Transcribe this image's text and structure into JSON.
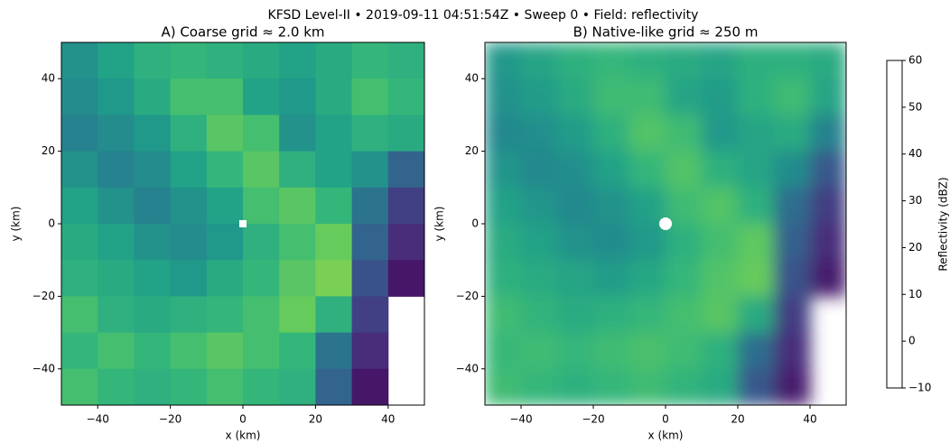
{
  "chart_data": {
    "title": "KFSD Level-II  •  2019-09-11 04:51:54Z  •  Sweep 0  •  Field: reflectivity",
    "panels": [
      {
        "type": "heatmap",
        "title": "A) Coarse grid ≈ 2.0 km",
        "xlabel": "x (km)",
        "ylabel": "y (km)",
        "xlim": [
          -50,
          50
        ],
        "ylim": [
          -50,
          50
        ],
        "xticks": [
          {
            "value": -40,
            "label": "−40"
          },
          {
            "value": -20,
            "label": "−20"
          },
          0,
          20,
          40
        ],
        "yticks": [
          {
            "value": -40,
            "label": "−40"
          },
          {
            "value": -20,
            "label": "−20"
          },
          0,
          20,
          40
        ],
        "xedges": [
          -50,
          -40,
          -30,
          -20,
          -10,
          0,
          10,
          20,
          30,
          40,
          50
        ],
        "yedges": [
          50,
          40,
          30,
          20,
          10,
          0,
          -10,
          -20,
          -30,
          -40,
          -50
        ],
        "values": [
          [
            30,
            35,
            40,
            42,
            40,
            38,
            35,
            38,
            42,
            40
          ],
          [
            28,
            32,
            38,
            45,
            45,
            35,
            32,
            38,
            45,
            42
          ],
          [
            25,
            28,
            32,
            40,
            48,
            45,
            30,
            35,
            40,
            38
          ],
          [
            30,
            25,
            28,
            35,
            42,
            48,
            40,
            35,
            30,
            15
          ],
          [
            35,
            30,
            25,
            30,
            35,
            45,
            48,
            42,
            20,
            5
          ],
          [
            38,
            35,
            30,
            28,
            32,
            40,
            45,
            50,
            15,
            0
          ],
          [
            40,
            38,
            35,
            32,
            38,
            42,
            48,
            52,
            10,
            -5
          ],
          [
            45,
            40,
            38,
            40,
            42,
            45,
            50,
            40,
            5,
            null
          ],
          [
            42,
            45,
            42,
            45,
            48,
            45,
            42,
            20,
            0,
            null
          ],
          [
            45,
            42,
            40,
            42,
            45,
            42,
            40,
            15,
            -5,
            null
          ]
        ]
      },
      {
        "type": "heatmap",
        "title": "B) Native-like grid ≈ 250 m",
        "xlabel": "x (km)",
        "ylabel": "y (km)",
        "xlim": [
          -50,
          50
        ],
        "ylim": [
          -50,
          50
        ],
        "xticks": [
          {
            "value": -40,
            "label": "−40"
          },
          {
            "value": -20,
            "label": "−20"
          },
          0,
          20,
          40
        ],
        "yticks": [
          {
            "value": -40,
            "label": "−40"
          },
          {
            "value": -20,
            "label": "−20"
          },
          0,
          20,
          40
        ],
        "xedges": [
          -50,
          -40,
          -30,
          -20,
          -10,
          0,
          10,
          20,
          30,
          40,
          50
        ],
        "yedges": [
          50,
          40,
          30,
          20,
          10,
          0,
          -10,
          -20,
          -30,
          -40,
          -50
        ],
        "values": [
          [
            32,
            36,
            40,
            42,
            40,
            38,
            36,
            40,
            40,
            38
          ],
          [
            30,
            33,
            38,
            44,
            44,
            36,
            33,
            40,
            44,
            36
          ],
          [
            27,
            29,
            33,
            40,
            47,
            44,
            32,
            36,
            38,
            25
          ],
          [
            31,
            27,
            29,
            35,
            42,
            47,
            40,
            36,
            28,
            12
          ],
          [
            35,
            31,
            27,
            30,
            35,
            44,
            47,
            40,
            18,
            4
          ],
          [
            38,
            35,
            30,
            28,
            32,
            40,
            45,
            49,
            14,
            0
          ],
          [
            40,
            38,
            36,
            33,
            37,
            42,
            47,
            50,
            10,
            -4
          ],
          [
            44,
            41,
            38,
            40,
            42,
            45,
            48,
            38,
            4,
            null
          ],
          [
            43,
            44,
            42,
            44,
            46,
            44,
            40,
            18,
            0,
            null
          ],
          [
            44,
            42,
            40,
            42,
            44,
            41,
            38,
            12,
            -4,
            null
          ]
        ]
      }
    ],
    "colorbar": {
      "label": "Reflectivity (dBZ)",
      "clim": [
        -10,
        60
      ],
      "ticks": [
        {
          "value": -10,
          "label": "−10"
        },
        0,
        10,
        20,
        30,
        40,
        50,
        60
      ]
    }
  }
}
